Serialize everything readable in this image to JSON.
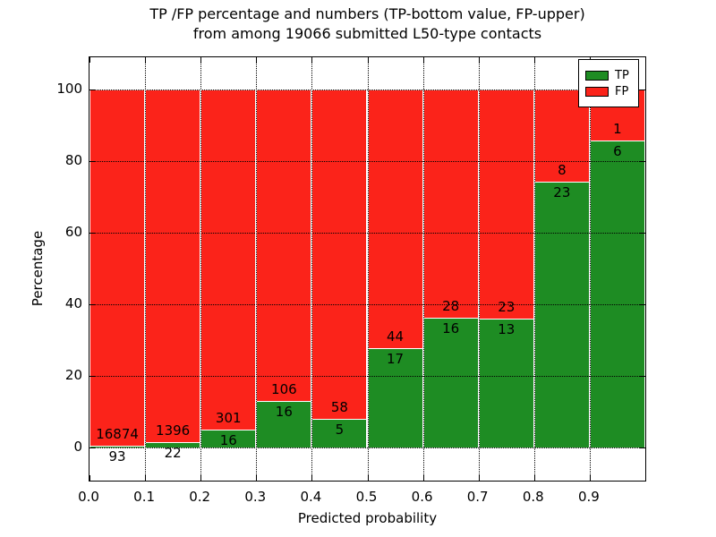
{
  "title": {
    "line1": "TP /FP percentage and numbers (TP-bottom value, FP-upper)",
    "line2": "from among 19066 submitted L50-type contacts"
  },
  "axes": {
    "xlabel": "Predicted probability",
    "ylabel": "Percentage",
    "x_tick_labels": [
      "0.0",
      "0.1",
      "0.2",
      "0.3",
      "0.4",
      "0.5",
      "0.6",
      "0.7",
      "0.8",
      "0.9"
    ],
    "x_tick_values": [
      0.0,
      0.1,
      0.2,
      0.3,
      0.4,
      0.5,
      0.6,
      0.7,
      0.8,
      0.9
    ],
    "y_tick_labels": [
      "0",
      "20",
      "40",
      "60",
      "80",
      "100"
    ],
    "y_tick_values": [
      0,
      20,
      40,
      60,
      80,
      100
    ]
  },
  "legend": [
    {
      "label": "TP",
      "color": "#1e8c23"
    },
    {
      "label": "FP",
      "color": "#fb231a"
    }
  ],
  "colors": {
    "tp_green": "#1e8c23",
    "fp_red": "#fb231a",
    "bar_edge": "#ffffff",
    "grid": "#000000"
  },
  "chart_data": {
    "type": "bar",
    "stacked": true,
    "normalized_to": 100,
    "title": "TP /FP percentage and numbers (TP-bottom value, FP-upper) from among 19066 submitted L50-type contacts",
    "xlabel": "Predicted probability",
    "ylabel": "Percentage",
    "total_contacts": 19066,
    "bin_starts": [
      0.0,
      0.1,
      0.2,
      0.3,
      0.4,
      0.5,
      0.6,
      0.7,
      0.8,
      0.9
    ],
    "bin_width": 0.1,
    "series": [
      {
        "name": "TP",
        "color": "#1e8c23",
        "counts": [
          93,
          22,
          16,
          16,
          5,
          17,
          16,
          13,
          23,
          6
        ]
      },
      {
        "name": "FP",
        "color": "#fb231a",
        "counts": [
          16874,
          1396,
          301,
          106,
          58,
          44,
          28,
          23,
          8,
          1
        ]
      }
    ],
    "tp_percent": [
      0.55,
      1.55,
      5.05,
      13.11,
      7.94,
      27.87,
      36.36,
      36.11,
      74.19,
      85.71
    ],
    "fp_percent": [
      99.45,
      98.45,
      94.95,
      86.89,
      92.06,
      72.13,
      63.64,
      63.89,
      25.81,
      14.29
    ],
    "xlim": [
      0.0,
      1.0
    ],
    "ylim": [
      -9.5,
      109.25
    ],
    "grid": "dotted black, drawn over bars",
    "legend_position": "upper right"
  }
}
